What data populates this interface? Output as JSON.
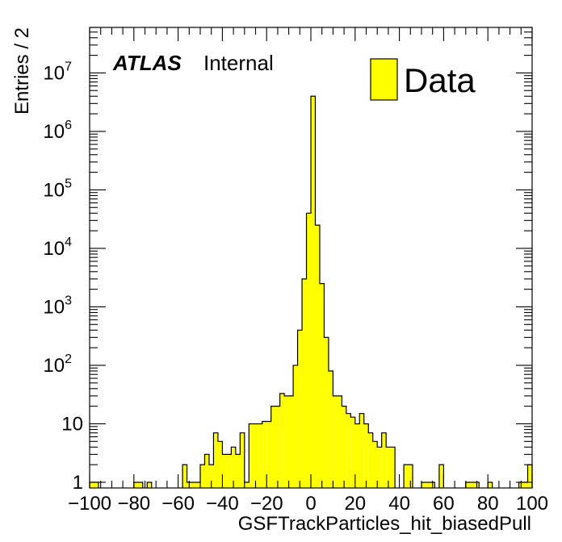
{
  "chart_data": {
    "type": "bar",
    "style": "histogram",
    "xlabel": "GSFTrackParticles_hit_biasedPull",
    "ylabel": "Entries / 2",
    "experiment_label": "ATLAS",
    "status_label": "Internal",
    "legend": {
      "placement": "top-right",
      "entries": [
        "Data"
      ]
    },
    "xlim": [
      -100,
      100
    ],
    "ylim": [
      0.8,
      60000000
    ],
    "yscale": "log",
    "bin_width": 2,
    "grid": false,
    "x_ticks": [
      "−100",
      "−80",
      "−60",
      "−40",
      "−20",
      "0",
      "20",
      "40",
      "60",
      "80",
      "100"
    ],
    "y_ticks": [
      "1",
      "10",
      "10^2",
      "10^3",
      "10^4",
      "10^5",
      "10^6",
      "10^7"
    ],
    "colors": {
      "fill": "#ffff00",
      "line": "#000000"
    },
    "bins": [
      {
        "x": -100,
        "y": 1
      },
      {
        "x": -98,
        "y": 1
      },
      {
        "x": -80,
        "y": 1
      },
      {
        "x": -78,
        "y": 1
      },
      {
        "x": -74,
        "y": 1
      },
      {
        "x": -58,
        "y": 2
      },
      {
        "x": -56,
        "y": 1
      },
      {
        "x": -54,
        "y": 1
      },
      {
        "x": -52,
        "y": 1
      },
      {
        "x": -50,
        "y": 2
      },
      {
        "x": -48,
        "y": 3
      },
      {
        "x": -46,
        "y": 2
      },
      {
        "x": -44,
        "y": 7
      },
      {
        "x": -42,
        "y": 5
      },
      {
        "x": -40,
        "y": 3
      },
      {
        "x": -38,
        "y": 3
      },
      {
        "x": -36,
        "y": 4
      },
      {
        "x": -34,
        "y": 3
      },
      {
        "x": -32,
        "y": 7
      },
      {
        "x": -30,
        "y": 1
      },
      {
        "x": -28,
        "y": 10
      },
      {
        "x": -26,
        "y": 10
      },
      {
        "x": -24,
        "y": 10
      },
      {
        "x": -22,
        "y": 11
      },
      {
        "x": -20,
        "y": 11
      },
      {
        "x": -18,
        "y": 20
      },
      {
        "x": -16,
        "y": 20
      },
      {
        "x": -14,
        "y": 33
      },
      {
        "x": -12,
        "y": 30
      },
      {
        "x": -10,
        "y": 30
      },
      {
        "x": -8,
        "y": 100
      },
      {
        "x": -6,
        "y": 400
      },
      {
        "x": -4,
        "y": 3000
      },
      {
        "x": -2,
        "y": 40000
      },
      {
        "x": 0,
        "y": 4000000
      },
      {
        "x": 2,
        "y": 25000
      },
      {
        "x": 4,
        "y": 2500
      },
      {
        "x": 6,
        "y": 300
      },
      {
        "x": 8,
        "y": 80
      },
      {
        "x": 10,
        "y": 30
      },
      {
        "x": 12,
        "y": 30
      },
      {
        "x": 14,
        "y": 20
      },
      {
        "x": 16,
        "y": 15
      },
      {
        "x": 18,
        "y": 13
      },
      {
        "x": 20,
        "y": 10
      },
      {
        "x": 22,
        "y": 15
      },
      {
        "x": 24,
        "y": 10
      },
      {
        "x": 26,
        "y": 7
      },
      {
        "x": 28,
        "y": 5
      },
      {
        "x": 30,
        "y": 4
      },
      {
        "x": 32,
        "y": 7
      },
      {
        "x": 34,
        "y": 4
      },
      {
        "x": 36,
        "y": 4
      },
      {
        "x": 42,
        "y": 2
      },
      {
        "x": 44,
        "y": 2
      },
      {
        "x": 50,
        "y": 1
      },
      {
        "x": 52,
        "y": 1
      },
      {
        "x": 54,
        "y": 1
      },
      {
        "x": 58,
        "y": 2
      },
      {
        "x": 70,
        "y": 1
      },
      {
        "x": 72,
        "y": 1
      },
      {
        "x": 74,
        "y": 1
      },
      {
        "x": 80,
        "y": 1
      },
      {
        "x": 94,
        "y": 1
      },
      {
        "x": 96,
        "y": 1
      },
      {
        "x": 98,
        "y": 2
      }
    ]
  }
}
